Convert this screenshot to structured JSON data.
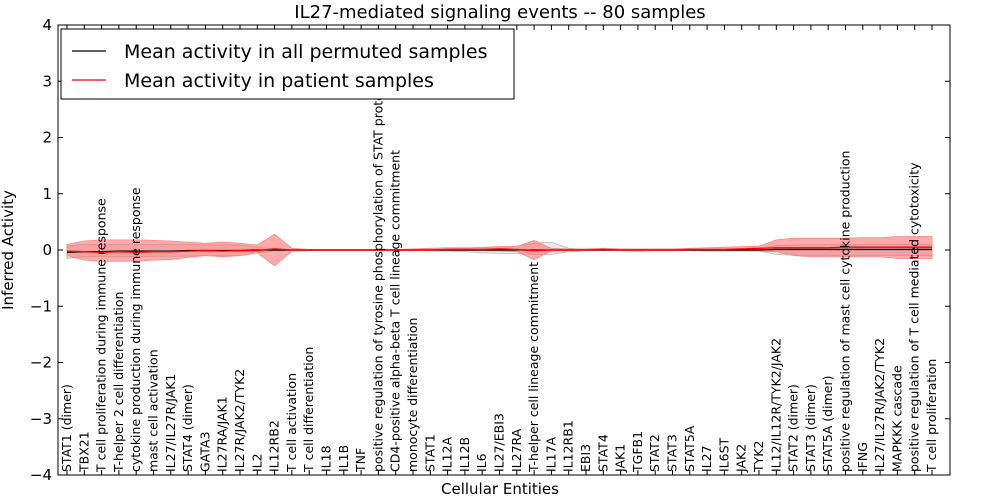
{
  "chart_data": {
    "type": "line",
    "title": "IL27-mediated signaling events -- 80 samples",
    "xlabel": "Cellular Entities",
    "ylabel": "Inferred Activity",
    "ylim": [
      -4,
      4
    ],
    "yticks": [
      "−4",
      "−3",
      "−2",
      "−1",
      "0",
      "1",
      "2",
      "3",
      "4"
    ],
    "grid": false,
    "legend_position": "top-left",
    "categories": [
      "STAT1 (dimer)",
      "TBX21",
      "T cell proliferation during immune response",
      "T-helper 2 cell differentiation",
      "cytokine production during immune response",
      "mast cell activation",
      "IL27/IL27R/JAK1",
      "STAT4 (dimer)",
      "GATA3",
      "IL27RA/JAK1",
      "IL27R/JAK2/TYK2",
      "IL2",
      "IL12RB2",
      "T cell activation",
      "T cell differentiation",
      "IL18",
      "IL1B",
      "TNF",
      "positive regulation of tyrosine phosphorylation of STAT protein",
      "CD4-positive alpha-beta T cell lineage commitment",
      "monocyte differentiation",
      "STAT1",
      "IL12A",
      "IL12B",
      "IL6",
      "IL27/EBI3",
      "IL27RA",
      "T-helper cell lineage commitment",
      "IL17A",
      "IL12RB1",
      "EBI3",
      "STAT4",
      "JAK1",
      "TGFB1",
      "STAT2",
      "STAT3",
      "STAT5A",
      "IL27",
      "IL6ST",
      "JAK2",
      "TYK2",
      "IL12/IL12R/TYK2/JAK2",
      "STAT2 (dimer)",
      "STAT3 (dimer)",
      "STAT5A (dimer)",
      "positive regulation of mast cell cytokine production",
      "IFNG",
      "IL27/IL27R/JAK2/TYK2",
      "MAPKKK cascade",
      "positive regulation of T cell mediated cytotoxicity",
      "T cell proliferation"
    ],
    "series": [
      {
        "name": "Mean activity in all permuted samples",
        "color": "#000000",
        "values": [
          -0.04,
          -0.03,
          -0.03,
          -0.02,
          -0.02,
          -0.02,
          -0.02,
          -0.01,
          -0.01,
          -0.01,
          -0.01,
          0.0,
          0.0,
          0.0,
          0.0,
          0.0,
          0.0,
          0.0,
          0.0,
          0.0,
          0.0,
          0.0,
          0.0,
          0.0,
          0.0,
          0.0,
          0.0,
          0.0,
          0.0,
          0.0,
          0.0,
          0.0,
          0.0,
          0.0,
          0.0,
          0.0,
          0.0,
          0.0,
          0.0,
          0.0,
          0.0,
          0.01,
          0.01,
          0.01,
          0.01,
          0.01,
          0.01,
          0.01,
          0.01,
          0.01,
          0.01
        ],
        "band_lower": [
          -0.15,
          -0.12,
          -0.12,
          -0.12,
          -0.12,
          -0.11,
          -0.11,
          -0.11,
          -0.1,
          -0.1,
          -0.1,
          -0.05,
          -0.02,
          -0.01,
          -0.01,
          -0.01,
          -0.01,
          -0.01,
          -0.01,
          -0.01,
          -0.01,
          -0.01,
          -0.02,
          -0.03,
          -0.05,
          -0.06,
          -0.06,
          -0.08,
          -0.08,
          -0.03,
          -0.01,
          -0.01,
          -0.01,
          -0.02,
          -0.01,
          -0.01,
          -0.01,
          -0.01,
          -0.01,
          -0.02,
          -0.02,
          -0.08,
          -0.09,
          -0.1,
          -0.1,
          -0.1,
          -0.1,
          -0.1,
          -0.1,
          -0.1,
          -0.1
        ],
        "band_upper": [
          0.07,
          0.1,
          0.1,
          0.1,
          0.1,
          0.1,
          0.1,
          0.1,
          0.09,
          0.09,
          0.09,
          0.05,
          0.02,
          0.01,
          0.01,
          0.01,
          0.01,
          0.01,
          0.01,
          0.01,
          0.01,
          0.01,
          0.02,
          0.03,
          0.05,
          0.06,
          0.07,
          0.12,
          0.14,
          0.03,
          0.01,
          0.01,
          0.01,
          0.02,
          0.01,
          0.01,
          0.01,
          0.01,
          0.01,
          0.02,
          0.02,
          0.08,
          0.09,
          0.1,
          0.1,
          0.1,
          0.1,
          0.1,
          0.1,
          0.1,
          0.1
        ]
      },
      {
        "name": "Mean activity in patient samples",
        "color": "#ff0000",
        "values": [
          -0.02,
          -0.03,
          -0.04,
          -0.03,
          -0.04,
          -0.03,
          -0.03,
          -0.02,
          -0.01,
          -0.02,
          -0.01,
          -0.01,
          0.02,
          0.0,
          0.0,
          0.0,
          0.0,
          0.0,
          0.0,
          0.0,
          0.0,
          0.0,
          0.01,
          0.01,
          0.01,
          0.02,
          0.01,
          -0.01,
          0.0,
          0.0,
          0.0,
          0.01,
          0.0,
          0.0,
          0.0,
          0.0,
          0.01,
          0.01,
          0.01,
          0.02,
          0.03,
          0.04,
          0.04,
          0.04,
          0.04,
          0.05,
          0.05,
          0.05,
          0.05,
          0.05,
          0.05
        ],
        "band_lower": [
          -0.1,
          -0.18,
          -0.2,
          -0.2,
          -0.2,
          -0.18,
          -0.17,
          -0.13,
          -0.1,
          -0.12,
          -0.1,
          -0.05,
          -0.28,
          -0.02,
          -0.01,
          -0.01,
          -0.01,
          -0.01,
          -0.01,
          -0.01,
          -0.01,
          -0.01,
          -0.02,
          -0.01,
          -0.01,
          -0.02,
          -0.03,
          -0.17,
          -0.02,
          -0.01,
          -0.01,
          -0.01,
          -0.01,
          -0.01,
          -0.01,
          -0.01,
          -0.01,
          -0.02,
          -0.02,
          -0.02,
          -0.02,
          -0.03,
          -0.1,
          -0.12,
          -0.12,
          -0.12,
          -0.12,
          -0.12,
          -0.15,
          -0.15,
          -0.15
        ],
        "band_upper": [
          0.1,
          0.16,
          0.18,
          0.18,
          0.18,
          0.17,
          0.16,
          0.14,
          0.12,
          0.14,
          0.12,
          0.09,
          0.28,
          0.03,
          0.01,
          0.01,
          0.01,
          0.01,
          0.01,
          0.01,
          0.02,
          0.03,
          0.04,
          0.04,
          0.04,
          0.06,
          0.06,
          0.17,
          0.03,
          0.02,
          0.02,
          0.03,
          0.02,
          0.02,
          0.02,
          0.02,
          0.03,
          0.04,
          0.05,
          0.06,
          0.07,
          0.18,
          0.21,
          0.21,
          0.21,
          0.21,
          0.22,
          0.22,
          0.24,
          0.24,
          0.24
        ]
      }
    ]
  }
}
